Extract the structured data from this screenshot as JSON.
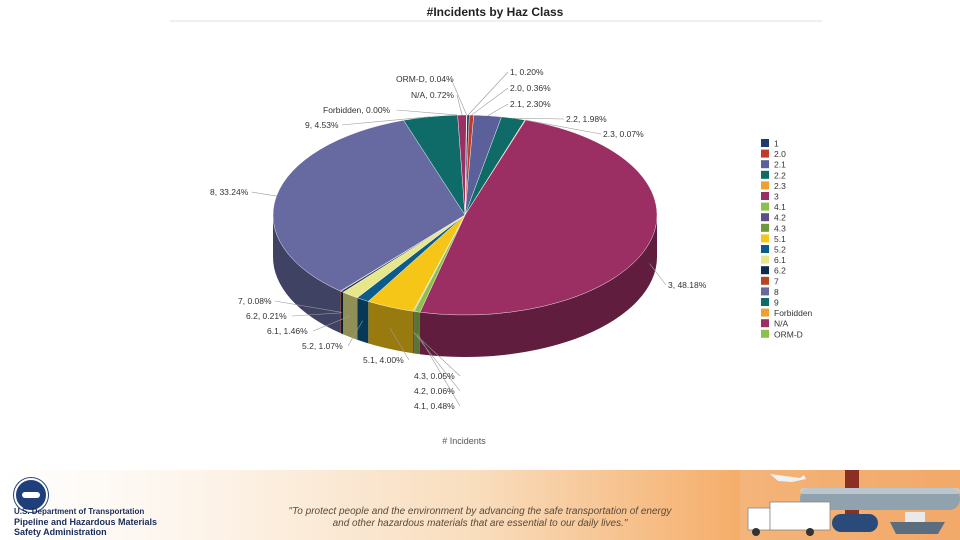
{
  "chart_data": {
    "type": "pie",
    "title": "#Incidents by Haz Class",
    "xlabel": "# Incidents",
    "slices": [
      {
        "label": "1",
        "value": 0.2,
        "color": "#1f3b6e",
        "text": "1, 0.20%"
      },
      {
        "label": "2.0",
        "value": 0.36,
        "color": "#c0392b",
        "text": "2.0, 0.36%"
      },
      {
        "label": "2.1",
        "value": 2.3,
        "color": "#5b5f9a",
        "text": "2.1, 2.30%"
      },
      {
        "label": "2.2",
        "value": 1.98,
        "color": "#0e6b67",
        "text": "2.2, 1.98%"
      },
      {
        "label": "2.3",
        "value": 0.07,
        "color": "#f0a030",
        "text": "2.3, 0.07%"
      },
      {
        "label": "3",
        "value": 48.18,
        "color": "#9b2f63",
        "text": "3, 48.18%"
      },
      {
        "label": "4.1",
        "value": 0.48,
        "color": "#8cc04a",
        "text": "4.1, 0.48%"
      },
      {
        "label": "4.2",
        "value": 0.06,
        "color": "#5c4f8a",
        "text": "4.2, 0.06%"
      },
      {
        "label": "4.3",
        "value": 0.05,
        "color": "#6a9a3a",
        "text": "4.3, 0.05%"
      },
      {
        "label": "5.1",
        "value": 4.0,
        "color": "#f5c518",
        "text": "5.1, 4.00%"
      },
      {
        "label": "5.2",
        "value": 1.07,
        "color": "#0b5c8c",
        "text": "5.2, 1.07%"
      },
      {
        "label": "6.1",
        "value": 1.46,
        "color": "#e8e68a",
        "text": "6.1, 1.46%"
      },
      {
        "label": "6.2",
        "value": 0.21,
        "color": "#0d2c4c",
        "text": "6.2, 0.21%"
      },
      {
        "label": "7",
        "value": 0.08,
        "color": "#b5481f",
        "text": "7, 0.08%"
      },
      {
        "label": "8",
        "value": 33.24,
        "color": "#676aa0",
        "text": "8, 33.24%"
      },
      {
        "label": "9",
        "value": 4.53,
        "color": "#0e6b67",
        "text": "9, 4.53%"
      },
      {
        "label": "Forbidden",
        "value": 0.0,
        "color": "#f0a030",
        "text": "Forbidden, 0.00%"
      },
      {
        "label": "N/A",
        "value": 0.72,
        "color": "#9b2f63",
        "text": "N/A, 0.72%"
      },
      {
        "label": "ORM-D",
        "value": 0.04,
        "color": "#8cc04a",
        "text": "ORM-D, 0.04%"
      }
    ],
    "legend_position": "right"
  },
  "footer": {
    "dept_name": "U.S. Department of Transportation",
    "agency_line1": "Pipeline and Hazardous Materials",
    "agency_line2": "Safety Administration",
    "mission_line1": "\"To protect people and the environment by advancing the safe transportation of energy",
    "mission_line2": "and other hazardous materials that are essential to our daily lives.\""
  }
}
